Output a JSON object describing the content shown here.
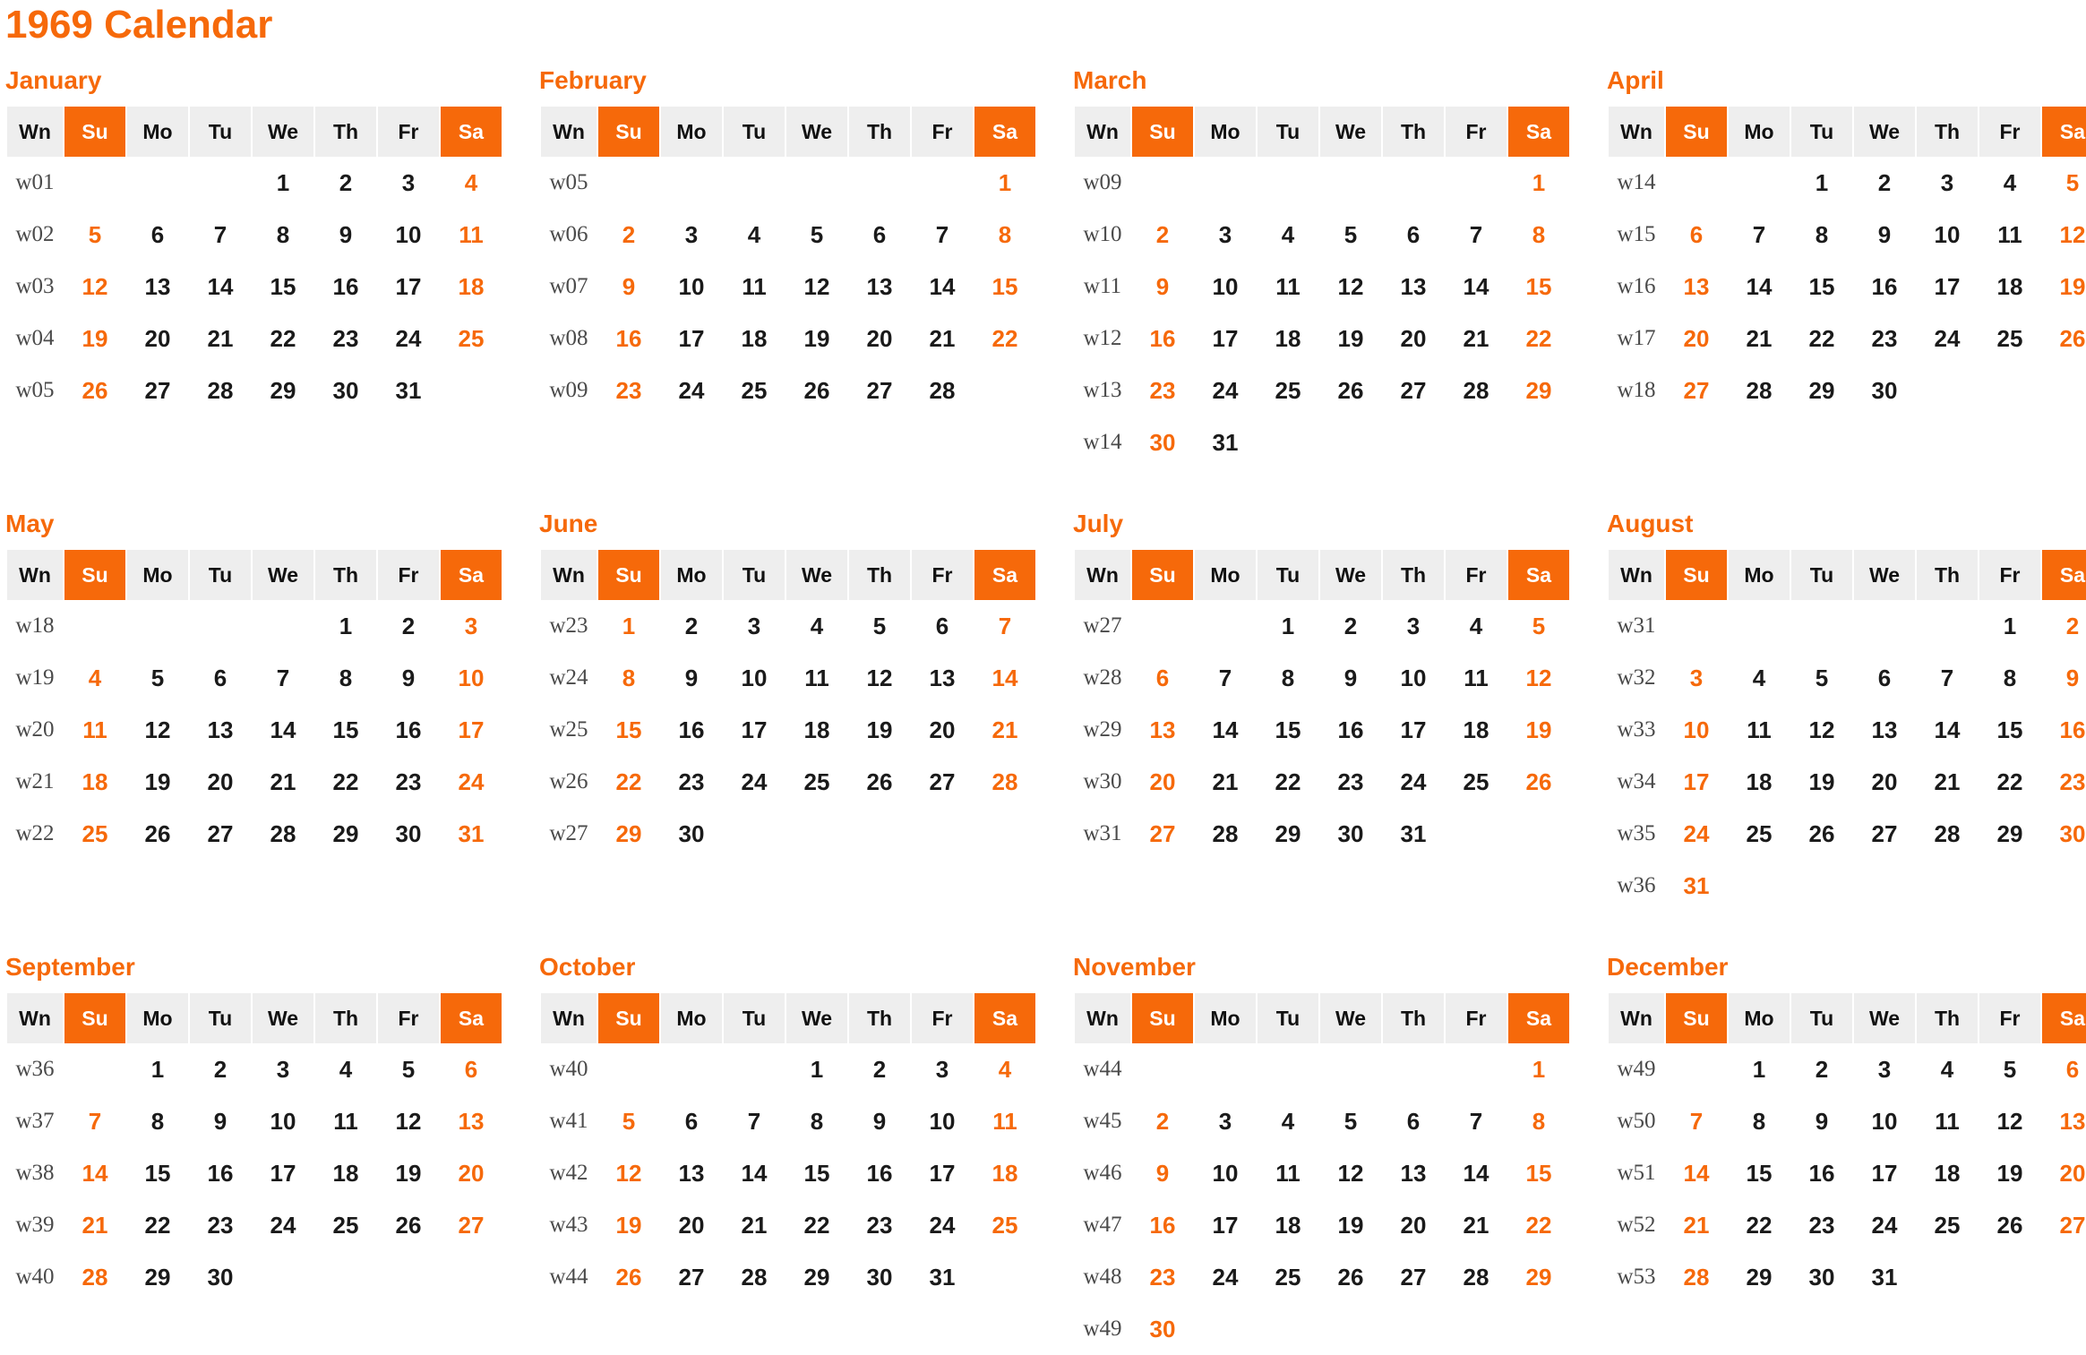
{
  "page": {
    "title": "1969 Calendar"
  },
  "colors": {
    "accent": "#f6690a",
    "header_background": "#eeeeee",
    "day_text": "#1a1a1a",
    "week_number_text": "#4a4a4a",
    "weekend_text": "#f6690a",
    "header_weekend_text": "#ffffff"
  },
  "weekday_headers": [
    "Wn",
    "Su",
    "Mo",
    "Tu",
    "We",
    "Th",
    "Fr",
    "Sa"
  ],
  "months": [
    {
      "name": "January",
      "weeks": [
        {
          "wn": "w01",
          "days": [
            "",
            "",
            "",
            "1",
            "2",
            "3",
            "4"
          ]
        },
        {
          "wn": "w02",
          "days": [
            "5",
            "6",
            "7",
            "8",
            "9",
            "10",
            "11"
          ]
        },
        {
          "wn": "w03",
          "days": [
            "12",
            "13",
            "14",
            "15",
            "16",
            "17",
            "18"
          ]
        },
        {
          "wn": "w04",
          "days": [
            "19",
            "20",
            "21",
            "22",
            "23",
            "24",
            "25"
          ]
        },
        {
          "wn": "w05",
          "days": [
            "26",
            "27",
            "28",
            "29",
            "30",
            "31",
            ""
          ]
        }
      ]
    },
    {
      "name": "February",
      "weeks": [
        {
          "wn": "w05",
          "days": [
            "",
            "",
            "",
            "",
            "",
            "",
            "1"
          ]
        },
        {
          "wn": "w06",
          "days": [
            "2",
            "3",
            "4",
            "5",
            "6",
            "7",
            "8"
          ]
        },
        {
          "wn": "w07",
          "days": [
            "9",
            "10",
            "11",
            "12",
            "13",
            "14",
            "15"
          ]
        },
        {
          "wn": "w08",
          "days": [
            "16",
            "17",
            "18",
            "19",
            "20",
            "21",
            "22"
          ]
        },
        {
          "wn": "w09",
          "days": [
            "23",
            "24",
            "25",
            "26",
            "27",
            "28",
            ""
          ]
        }
      ]
    },
    {
      "name": "March",
      "weeks": [
        {
          "wn": "w09",
          "days": [
            "",
            "",
            "",
            "",
            "",
            "",
            "1"
          ]
        },
        {
          "wn": "w10",
          "days": [
            "2",
            "3",
            "4",
            "5",
            "6",
            "7",
            "8"
          ]
        },
        {
          "wn": "w11",
          "days": [
            "9",
            "10",
            "11",
            "12",
            "13",
            "14",
            "15"
          ]
        },
        {
          "wn": "w12",
          "days": [
            "16",
            "17",
            "18",
            "19",
            "20",
            "21",
            "22"
          ]
        },
        {
          "wn": "w13",
          "days": [
            "23",
            "24",
            "25",
            "26",
            "27",
            "28",
            "29"
          ]
        },
        {
          "wn": "w14",
          "days": [
            "30",
            "31",
            "",
            "",
            "",
            "",
            ""
          ]
        }
      ]
    },
    {
      "name": "April",
      "weeks": [
        {
          "wn": "w14",
          "days": [
            "",
            "",
            "1",
            "2",
            "3",
            "4",
            "5"
          ]
        },
        {
          "wn": "w15",
          "days": [
            "6",
            "7",
            "8",
            "9",
            "10",
            "11",
            "12"
          ]
        },
        {
          "wn": "w16",
          "days": [
            "13",
            "14",
            "15",
            "16",
            "17",
            "18",
            "19"
          ]
        },
        {
          "wn": "w17",
          "days": [
            "20",
            "21",
            "22",
            "23",
            "24",
            "25",
            "26"
          ]
        },
        {
          "wn": "w18",
          "days": [
            "27",
            "28",
            "29",
            "30",
            "",
            "",
            ""
          ]
        }
      ]
    },
    {
      "name": "May",
      "weeks": [
        {
          "wn": "w18",
          "days": [
            "",
            "",
            "",
            "",
            "1",
            "2",
            "3"
          ]
        },
        {
          "wn": "w19",
          "days": [
            "4",
            "5",
            "6",
            "7",
            "8",
            "9",
            "10"
          ]
        },
        {
          "wn": "w20",
          "days": [
            "11",
            "12",
            "13",
            "14",
            "15",
            "16",
            "17"
          ]
        },
        {
          "wn": "w21",
          "days": [
            "18",
            "19",
            "20",
            "21",
            "22",
            "23",
            "24"
          ]
        },
        {
          "wn": "w22",
          "days": [
            "25",
            "26",
            "27",
            "28",
            "29",
            "30",
            "31"
          ]
        }
      ]
    },
    {
      "name": "June",
      "weeks": [
        {
          "wn": "w23",
          "days": [
            "1",
            "2",
            "3",
            "4",
            "5",
            "6",
            "7"
          ]
        },
        {
          "wn": "w24",
          "days": [
            "8",
            "9",
            "10",
            "11",
            "12",
            "13",
            "14"
          ]
        },
        {
          "wn": "w25",
          "days": [
            "15",
            "16",
            "17",
            "18",
            "19",
            "20",
            "21"
          ]
        },
        {
          "wn": "w26",
          "days": [
            "22",
            "23",
            "24",
            "25",
            "26",
            "27",
            "28"
          ]
        },
        {
          "wn": "w27",
          "days": [
            "29",
            "30",
            "",
            "",
            "",
            "",
            ""
          ]
        }
      ]
    },
    {
      "name": "July",
      "weeks": [
        {
          "wn": "w27",
          "days": [
            "",
            "",
            "1",
            "2",
            "3",
            "4",
            "5"
          ]
        },
        {
          "wn": "w28",
          "days": [
            "6",
            "7",
            "8",
            "9",
            "10",
            "11",
            "12"
          ]
        },
        {
          "wn": "w29",
          "days": [
            "13",
            "14",
            "15",
            "16",
            "17",
            "18",
            "19"
          ]
        },
        {
          "wn": "w30",
          "days": [
            "20",
            "21",
            "22",
            "23",
            "24",
            "25",
            "26"
          ]
        },
        {
          "wn": "w31",
          "days": [
            "27",
            "28",
            "29",
            "30",
            "31",
            "",
            ""
          ]
        }
      ]
    },
    {
      "name": "August",
      "weeks": [
        {
          "wn": "w31",
          "days": [
            "",
            "",
            "",
            "",
            "",
            "1",
            "2"
          ]
        },
        {
          "wn": "w32",
          "days": [
            "3",
            "4",
            "5",
            "6",
            "7",
            "8",
            "9"
          ]
        },
        {
          "wn": "w33",
          "days": [
            "10",
            "11",
            "12",
            "13",
            "14",
            "15",
            "16"
          ]
        },
        {
          "wn": "w34",
          "days": [
            "17",
            "18",
            "19",
            "20",
            "21",
            "22",
            "23"
          ]
        },
        {
          "wn": "w35",
          "days": [
            "24",
            "25",
            "26",
            "27",
            "28",
            "29",
            "30"
          ]
        },
        {
          "wn": "w36",
          "days": [
            "31",
            "",
            "",
            "",
            "",
            "",
            ""
          ]
        }
      ]
    },
    {
      "name": "September",
      "weeks": [
        {
          "wn": "w36",
          "days": [
            "",
            "1",
            "2",
            "3",
            "4",
            "5",
            "6"
          ]
        },
        {
          "wn": "w37",
          "days": [
            "7",
            "8",
            "9",
            "10",
            "11",
            "12",
            "13"
          ]
        },
        {
          "wn": "w38",
          "days": [
            "14",
            "15",
            "16",
            "17",
            "18",
            "19",
            "20"
          ]
        },
        {
          "wn": "w39",
          "days": [
            "21",
            "22",
            "23",
            "24",
            "25",
            "26",
            "27"
          ]
        },
        {
          "wn": "w40",
          "days": [
            "28",
            "29",
            "30",
            "",
            "",
            "",
            ""
          ]
        }
      ]
    },
    {
      "name": "October",
      "weeks": [
        {
          "wn": "w40",
          "days": [
            "",
            "",
            "",
            "1",
            "2",
            "3",
            "4"
          ]
        },
        {
          "wn": "w41",
          "days": [
            "5",
            "6",
            "7",
            "8",
            "9",
            "10",
            "11"
          ]
        },
        {
          "wn": "w42",
          "days": [
            "12",
            "13",
            "14",
            "15",
            "16",
            "17",
            "18"
          ]
        },
        {
          "wn": "w43",
          "days": [
            "19",
            "20",
            "21",
            "22",
            "23",
            "24",
            "25"
          ]
        },
        {
          "wn": "w44",
          "days": [
            "26",
            "27",
            "28",
            "29",
            "30",
            "31",
            ""
          ]
        }
      ]
    },
    {
      "name": "November",
      "weeks": [
        {
          "wn": "w44",
          "days": [
            "",
            "",
            "",
            "",
            "",
            "",
            "1"
          ]
        },
        {
          "wn": "w45",
          "days": [
            "2",
            "3",
            "4",
            "5",
            "6",
            "7",
            "8"
          ]
        },
        {
          "wn": "w46",
          "days": [
            "9",
            "10",
            "11",
            "12",
            "13",
            "14",
            "15"
          ]
        },
        {
          "wn": "w47",
          "days": [
            "16",
            "17",
            "18",
            "19",
            "20",
            "21",
            "22"
          ]
        },
        {
          "wn": "w48",
          "days": [
            "23",
            "24",
            "25",
            "26",
            "27",
            "28",
            "29"
          ]
        },
        {
          "wn": "w49",
          "days": [
            "30",
            "",
            "",
            "",
            "",
            "",
            ""
          ]
        }
      ]
    },
    {
      "name": "December",
      "weeks": [
        {
          "wn": "w49",
          "days": [
            "",
            "1",
            "2",
            "3",
            "4",
            "5",
            "6"
          ]
        },
        {
          "wn": "w50",
          "days": [
            "7",
            "8",
            "9",
            "10",
            "11",
            "12",
            "13"
          ]
        },
        {
          "wn": "w51",
          "days": [
            "14",
            "15",
            "16",
            "17",
            "18",
            "19",
            "20"
          ]
        },
        {
          "wn": "w52",
          "days": [
            "21",
            "22",
            "23",
            "24",
            "25",
            "26",
            "27"
          ]
        },
        {
          "wn": "w53",
          "days": [
            "28",
            "29",
            "30",
            "31",
            "",
            "",
            ""
          ]
        }
      ]
    }
  ]
}
